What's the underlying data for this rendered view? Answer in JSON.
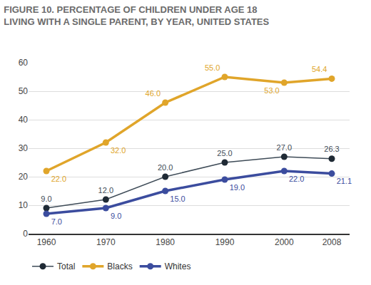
{
  "chart_data": {
    "type": "line",
    "title": "FIGURE 10. PERCENTAGE OF CHILDREN UNDER AGE 18\nLIVING WITH A SINGLE PARENT, BY YEAR, UNITED STATES",
    "x": [
      1960,
      1970,
      1980,
      1990,
      2000,
      2008
    ],
    "series": [
      {
        "name": "Total",
        "color": "#3e4b57",
        "values": [
          9,
          12,
          20,
          25,
          27,
          26.3
        ],
        "value_labels": [
          "9.0",
          "12.0",
          "20.0",
          "25.0",
          "27.0",
          "26.3"
        ]
      },
      {
        "name": "Blacks",
        "color": "#e0a52a",
        "values": [
          22,
          32,
          46,
          55,
          53,
          54.4
        ],
        "value_labels": [
          "22.0",
          "32.0",
          "46.0",
          "55.0",
          "53.0",
          "54.4"
        ]
      },
      {
        "name": "Whites",
        "color": "#3b4c9e",
        "values": [
          7,
          9,
          15,
          19,
          22,
          21.1
        ],
        "value_labels": [
          "7.0",
          "9.0",
          "15.0",
          "19.0",
          "22.0",
          "21.1"
        ]
      }
    ],
    "xlim": [
      1957,
      2011
    ],
    "xticks": [
      1960,
      1970,
      1980,
      1990,
      2000,
      2008
    ],
    "ylim": [
      0,
      60
    ],
    "yticks": [
      0,
      10,
      20,
      30,
      40,
      50,
      60
    ],
    "grid": true,
    "legend": "bottom left",
    "data_labels": true,
    "marker": "circle"
  }
}
